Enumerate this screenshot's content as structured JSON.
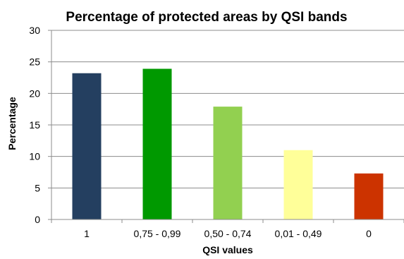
{
  "chart_data": {
    "type": "bar",
    "title": "Percentage of protected areas by QSI bands",
    "xlabel": "QSI values",
    "ylabel": "Percentage",
    "categories": [
      "1",
      "0,75 - 0,99",
      "0,50 - 0,74",
      "0,01 - 0,49",
      "0"
    ],
    "values": [
      23.2,
      23.9,
      17.9,
      11.0,
      7.3
    ],
    "colors": [
      "#243F60",
      "#009900",
      "#92D050",
      "#FFFF99",
      "#CC3300"
    ],
    "ylim": [
      0,
      30
    ],
    "yticks": [
      "0",
      "5",
      "10",
      "15",
      "20",
      "25",
      "30"
    ],
    "grid": true,
    "legend": "none"
  }
}
